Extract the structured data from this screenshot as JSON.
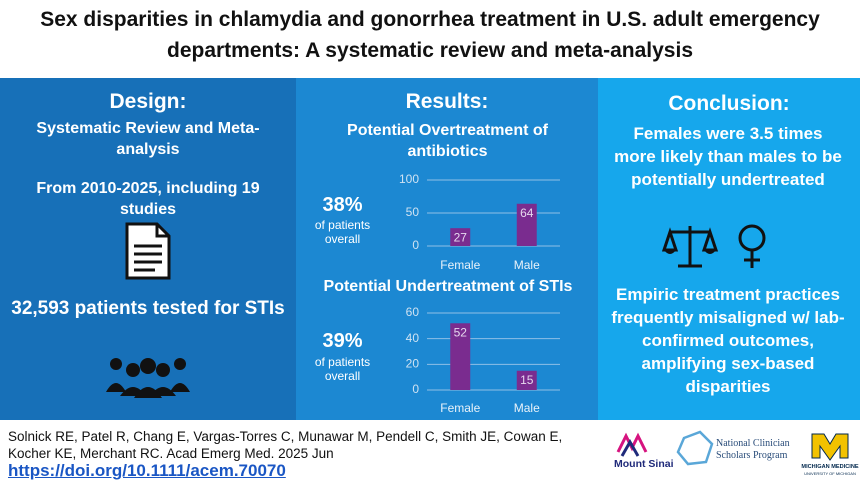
{
  "header": {
    "title": "Sex disparities in chlamydia and gonorrhea treatment in U.S. adult emergency departments: A systematic review and meta-analysis"
  },
  "design": {
    "heading": "Design:",
    "method": "Systematic Review and Meta-analysis",
    "period": "From 2010-2025, including 19 studies",
    "patients": "32,593 patients tested for STIs"
  },
  "results": {
    "heading": "Results:",
    "overtreatment_percent": "38%",
    "overtreatment_note": "of patients overall",
    "undertreatment_percent": "39%",
    "undertreatment_note": "of patients overall"
  },
  "chart_data": [
    {
      "type": "bar",
      "title": "Potential Overtreatment of antibiotics",
      "categories": [
        "Female",
        "Male"
      ],
      "values": [
        27,
        64
      ],
      "color": "#7a2c8f",
      "ylim": [
        0,
        100
      ],
      "yticks": [
        0,
        50,
        100
      ],
      "grid": true
    },
    {
      "type": "bar",
      "title": "Potential Undertreatment of STIs",
      "categories": [
        "Female",
        "Male"
      ],
      "values": [
        52,
        15
      ],
      "color": "#7a2c8f",
      "ylim": [
        0,
        60
      ],
      "yticks": [
        0,
        20,
        40,
        60
      ],
      "grid": true
    }
  ],
  "conclusion": {
    "heading": "Conclusion:",
    "finding": "Females were 3.5 times more likely than males to be potentially undertreated",
    "implication": "Empiric treatment practices frequently misaligned w/ lab-confirmed outcomes, amplifying sex-based disparities"
  },
  "footer": {
    "citation": "Solnick RE, Patel R, Chang E, Vargas-Torres C, Munawar M, Pendell C, Smith JE, Cowan E, Kocher KE, Merchant RC. Acad Emerg Med. 2025 Jun",
    "doi": "https://doi.org/10.1111/acem.70070",
    "logos": [
      "Mount Sinai",
      "National Clinician Scholars Program",
      "MICHIGAN MEDICINE",
      "UNIVERSITY OF MICHIGAN"
    ]
  }
}
